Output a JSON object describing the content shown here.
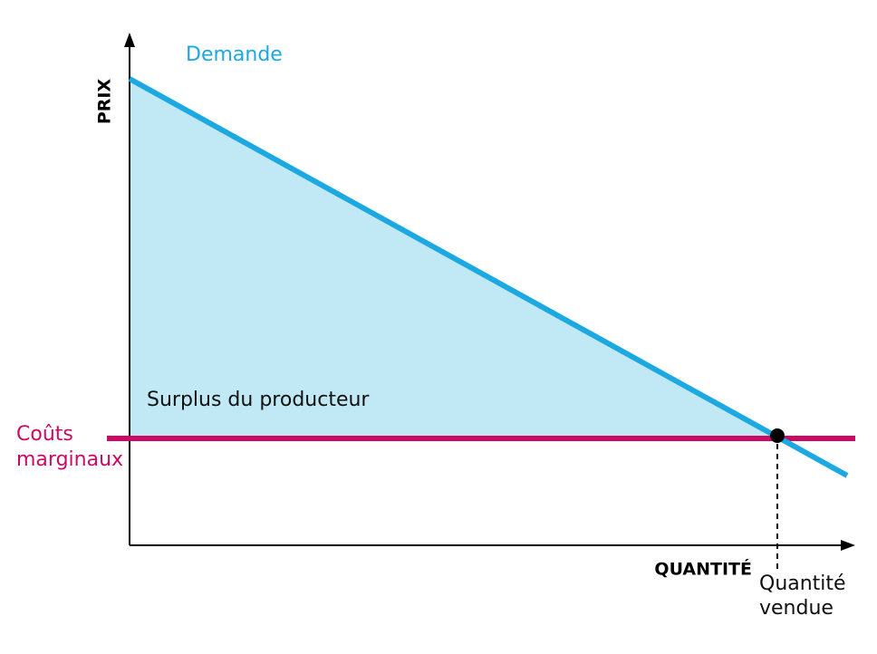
{
  "labels": {
    "demand": "Demande",
    "price_axis": "PRIX",
    "quantity_axis": "QUANTITÉ",
    "producer_surplus": "Surplus du producteur",
    "marginal_cost": [
      "Coûts",
      "marginaux"
    ],
    "quantity_sold": [
      "Quantité",
      "vendue"
    ]
  }
}
